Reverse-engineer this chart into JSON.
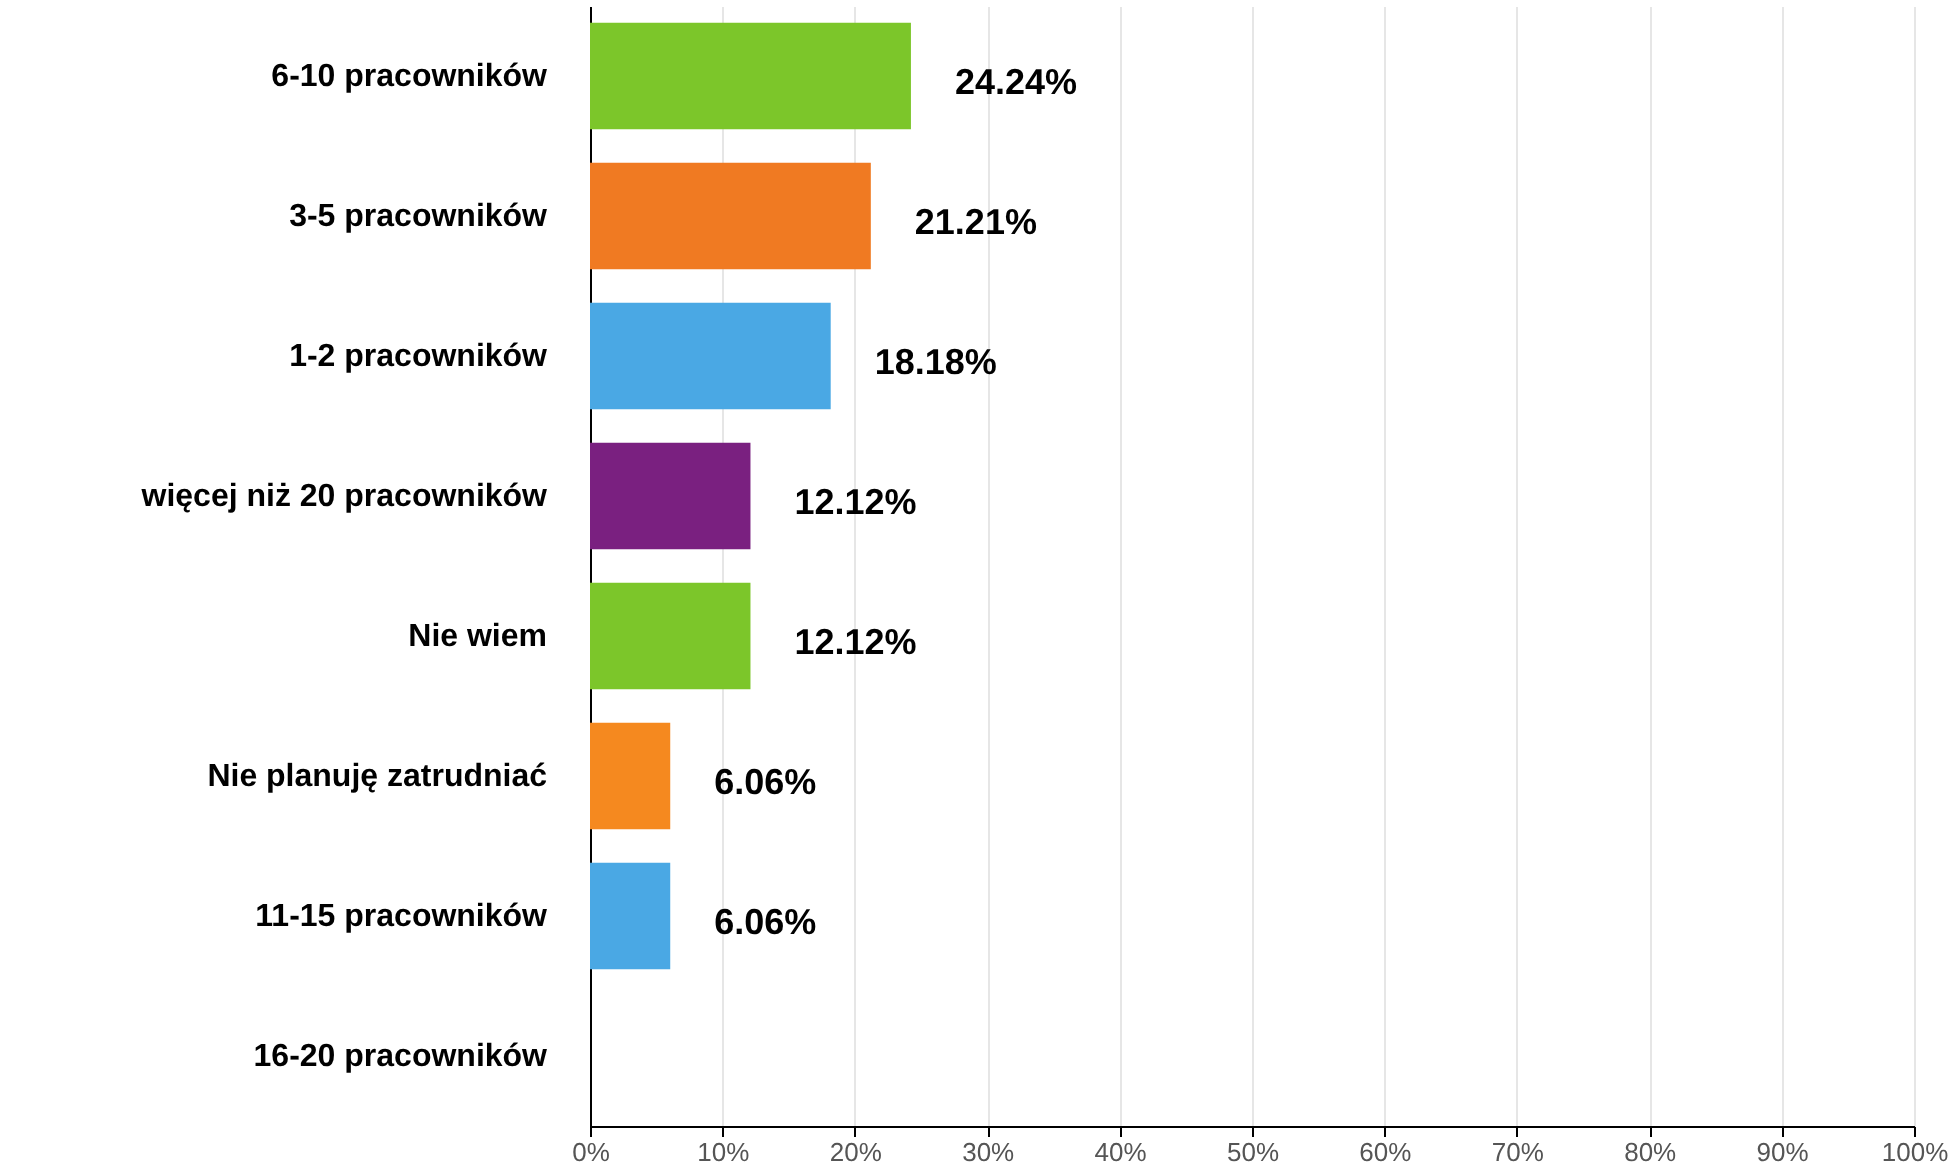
{
  "chart_data": {
    "type": "bar",
    "orientation": "horizontal",
    "categories": [
      "6-10 pracowników",
      "3-5 pracowników",
      "1-2 pracowników",
      "więcej niż 20 pracowników",
      "Nie wiem",
      "Nie planuję zatrudniać",
      "11-15 pracowników",
      "16-20 pracowników"
    ],
    "values": [
      24.24,
      21.21,
      18.18,
      12.12,
      12.12,
      6.06,
      6.06,
      0
    ],
    "value_labels": [
      "24.24%",
      "21.21%",
      "18.18%",
      "12.12%",
      "12.12%",
      "6.06%",
      "6.06%",
      null
    ],
    "colors": [
      "#7cc62a",
      "#f07a22",
      "#4aa8e4",
      "#7a2080",
      "#7cc62a",
      "#f5891f",
      "#4aa8e4",
      "#4aa8e4"
    ],
    "xlim": [
      0,
      100
    ],
    "xticks": [
      {
        "value": 0,
        "label": "0%"
      },
      {
        "value": 10,
        "label": "10%"
      },
      {
        "value": 20,
        "label": "20%"
      },
      {
        "value": 30,
        "label": "30%"
      },
      {
        "value": 40,
        "label": "40%"
      },
      {
        "value": 50,
        "label": "50%"
      },
      {
        "value": 60,
        "label": "60%"
      },
      {
        "value": 70,
        "label": "70%"
      },
      {
        "value": 80,
        "label": "80%"
      },
      {
        "value": 90,
        "label": "90%"
      },
      {
        "value": 100,
        "label": "100%"
      }
    ],
    "grid": "x"
  }
}
